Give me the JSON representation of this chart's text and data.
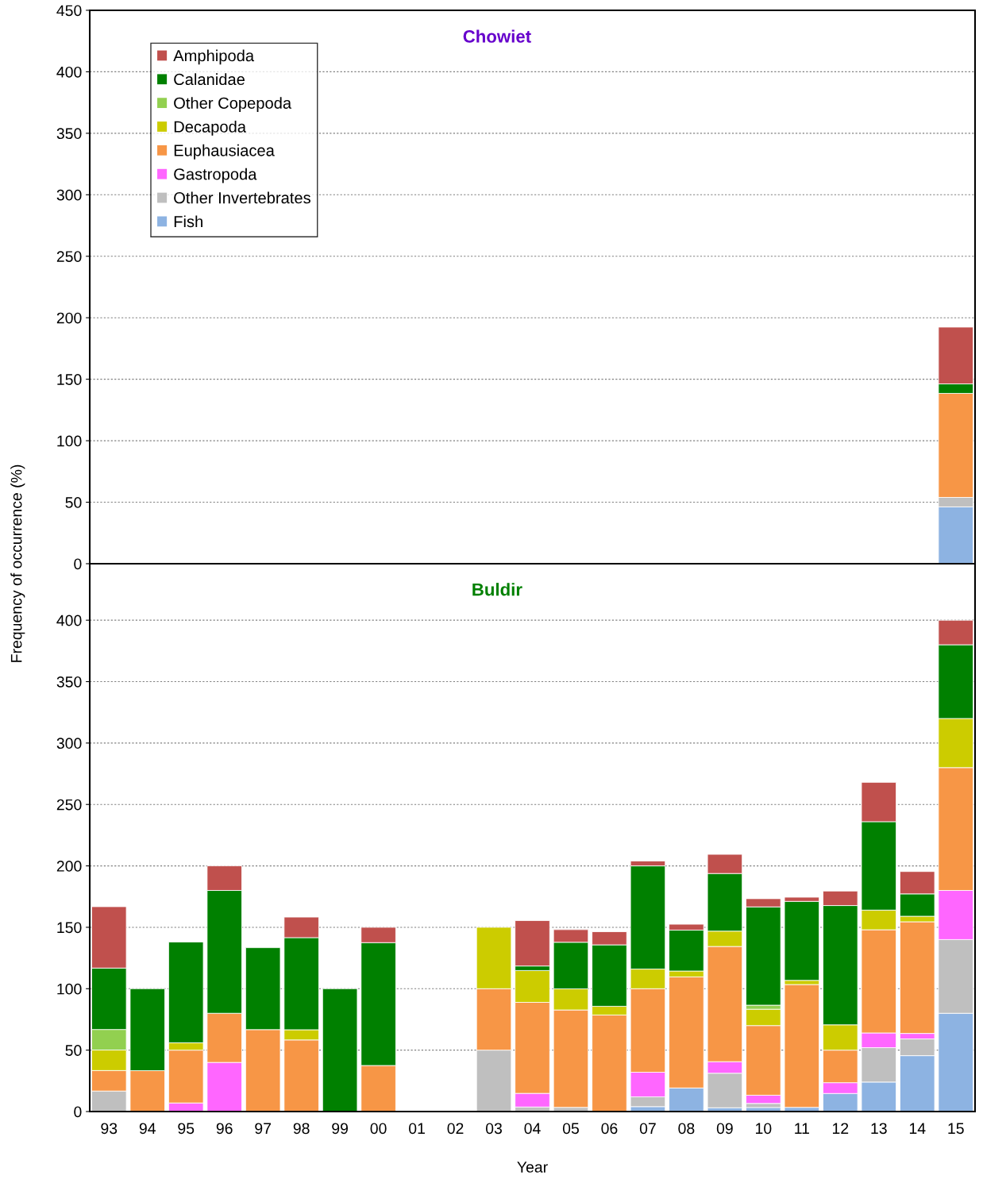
{
  "chart_data": [
    {
      "type": "bar",
      "title": "Chowiet",
      "stacked": true,
      "legend": "top left",
      "grid": "y",
      "tick_labels": "y",
      "categories": [
        "93",
        "94",
        "95",
        "96",
        "97",
        "98",
        "99",
        "00",
        "01",
        "02",
        "03",
        "04",
        "05",
        "06",
        "07",
        "08",
        "09",
        "10",
        "11",
        "12",
        "13",
        "14",
        "15"
      ],
      "ylim": [
        0,
        450
      ],
      "yticks": [
        0,
        50,
        100,
        150,
        200,
        250,
        300,
        350,
        400,
        450
      ],
      "series": [
        {
          "name": "Fish",
          "color": "#8db3e2",
          "values": [
            null,
            null,
            null,
            null,
            null,
            null,
            null,
            null,
            null,
            null,
            null,
            null,
            null,
            null,
            null,
            null,
            null,
            null,
            null,
            null,
            null,
            null,
            46.2
          ]
        },
        {
          "name": "Other Invertebrates",
          "color": "#bfbfbf",
          "values": [
            null,
            null,
            null,
            null,
            null,
            null,
            null,
            null,
            null,
            null,
            null,
            null,
            null,
            null,
            null,
            null,
            null,
            null,
            null,
            null,
            null,
            null,
            7.7
          ]
        },
        {
          "name": "Gastropoda",
          "color": "#ff66ff",
          "values": [
            null,
            null,
            null,
            null,
            null,
            null,
            null,
            null,
            null,
            null,
            null,
            null,
            null,
            null,
            null,
            null,
            null,
            null,
            null,
            null,
            null,
            null,
            null
          ]
        },
        {
          "name": "Euphausiacea",
          "color": "#f79646",
          "values": [
            null,
            null,
            null,
            null,
            null,
            null,
            null,
            null,
            null,
            null,
            null,
            null,
            null,
            null,
            null,
            null,
            null,
            null,
            null,
            null,
            null,
            null,
            84.6
          ]
        },
        {
          "name": "Decapoda",
          "color": "#cccc00",
          "values": [
            null,
            null,
            null,
            null,
            null,
            null,
            null,
            null,
            null,
            null,
            null,
            null,
            null,
            null,
            null,
            null,
            null,
            null,
            null,
            null,
            null,
            null,
            null
          ]
        },
        {
          "name": "Other Copepoda",
          "color": "#92d050",
          "values": [
            null,
            null,
            null,
            null,
            null,
            null,
            null,
            null,
            null,
            null,
            null,
            null,
            null,
            null,
            null,
            null,
            null,
            null,
            null,
            null,
            null,
            null,
            null
          ]
        },
        {
          "name": "Calanidae",
          "color": "#008000",
          "values": [
            null,
            null,
            null,
            null,
            null,
            null,
            null,
            null,
            null,
            null,
            null,
            null,
            null,
            null,
            null,
            null,
            null,
            null,
            null,
            null,
            null,
            null,
            7.7
          ]
        },
        {
          "name": "Amphipoda",
          "color": "#c0504d",
          "values": [
            null,
            null,
            null,
            null,
            null,
            null,
            null,
            null,
            null,
            null,
            null,
            null,
            null,
            null,
            null,
            null,
            null,
            null,
            null,
            null,
            null,
            null,
            46.2
          ]
        }
      ]
    },
    {
      "type": "bar",
      "title": "Buldir",
      "stacked": true,
      "grid": "y",
      "xlabel": "Year",
      "ylabel": "Frequency of occurrence (%)",
      "categories": [
        "93",
        "94",
        "95",
        "96",
        "97",
        "98",
        "99",
        "00",
        "01",
        "02",
        "03",
        "04",
        "05",
        "06",
        "07",
        "08",
        "09",
        "10",
        "11",
        "12",
        "13",
        "14",
        "15"
      ],
      "ylim": [
        0,
        446
      ],
      "yticks": [
        0,
        50,
        100,
        150,
        200,
        250,
        300,
        350,
        400
      ],
      "series": [
        {
          "color": "#8db3e2",
          "values": [
            null,
            null,
            null,
            null,
            null,
            null,
            null,
            null,
            null,
            null,
            null,
            null,
            null,
            null,
            4,
            19.2,
            3.1,
            3.3,
            3.4,
            14.7,
            24,
            45.5,
            80
          ]
        },
        {
          "color": "#bfbfbf",
          "values": [
            16.7,
            null,
            null,
            null,
            null,
            null,
            null,
            null,
            null,
            null,
            50,
            3.7,
            3.4,
            null,
            8,
            null,
            28.1,
            3.3,
            null,
            null,
            28,
            13.6,
            60
          ]
        },
        {
          "color": "#ff66ff",
          "values": [
            null,
            null,
            7,
            40,
            null,
            null,
            null,
            null,
            null,
            null,
            null,
            11.1,
            null,
            null,
            20,
            null,
            9.4,
            6.7,
            null,
            8.8,
            12,
            4.5,
            40
          ]
        },
        {
          "color": "#f79646",
          "values": [
            16.7,
            33.3,
            43,
            40,
            66.7,
            58.3,
            null,
            37.5,
            null,
            null,
            50,
            74.1,
            79.3,
            78.6,
            68,
            90.4,
            93.8,
            56.7,
            100,
            26.5,
            84,
            90.9,
            100
          ]
        },
        {
          "color": "#cccc00",
          "values": [
            16.7,
            null,
            6,
            null,
            null,
            8.3,
            null,
            null,
            null,
            null,
            50,
            25.9,
            17.2,
            7.1,
            16,
            4.8,
            12.5,
            13.3,
            3.4,
            20.6,
            16,
            4.5,
            40
          ]
        },
        {
          "color": "#92d050",
          "values": [
            16.7,
            null,
            null,
            null,
            null,
            null,
            null,
            null,
            null,
            null,
            null,
            null,
            null,
            null,
            null,
            null,
            null,
            3.3,
            null,
            null,
            null,
            null,
            null
          ]
        },
        {
          "color": "#008000",
          "values": [
            50,
            66.7,
            82,
            100,
            66.7,
            75,
            100,
            100,
            null,
            null,
            null,
            3.7,
            37.9,
            50,
            84,
            33.3,
            46.9,
            80,
            64.3,
            97.1,
            72,
            18.2,
            60
          ]
        },
        {
          "color": "#c0504d",
          "values": [
            50,
            null,
            null,
            20,
            null,
            16.7,
            null,
            12.5,
            null,
            null,
            null,
            37,
            10.3,
            10.7,
            4,
            4.8,
            15.6,
            6.7,
            3.4,
            11.8,
            32,
            18.2,
            20
          ]
        }
      ]
    }
  ]
}
